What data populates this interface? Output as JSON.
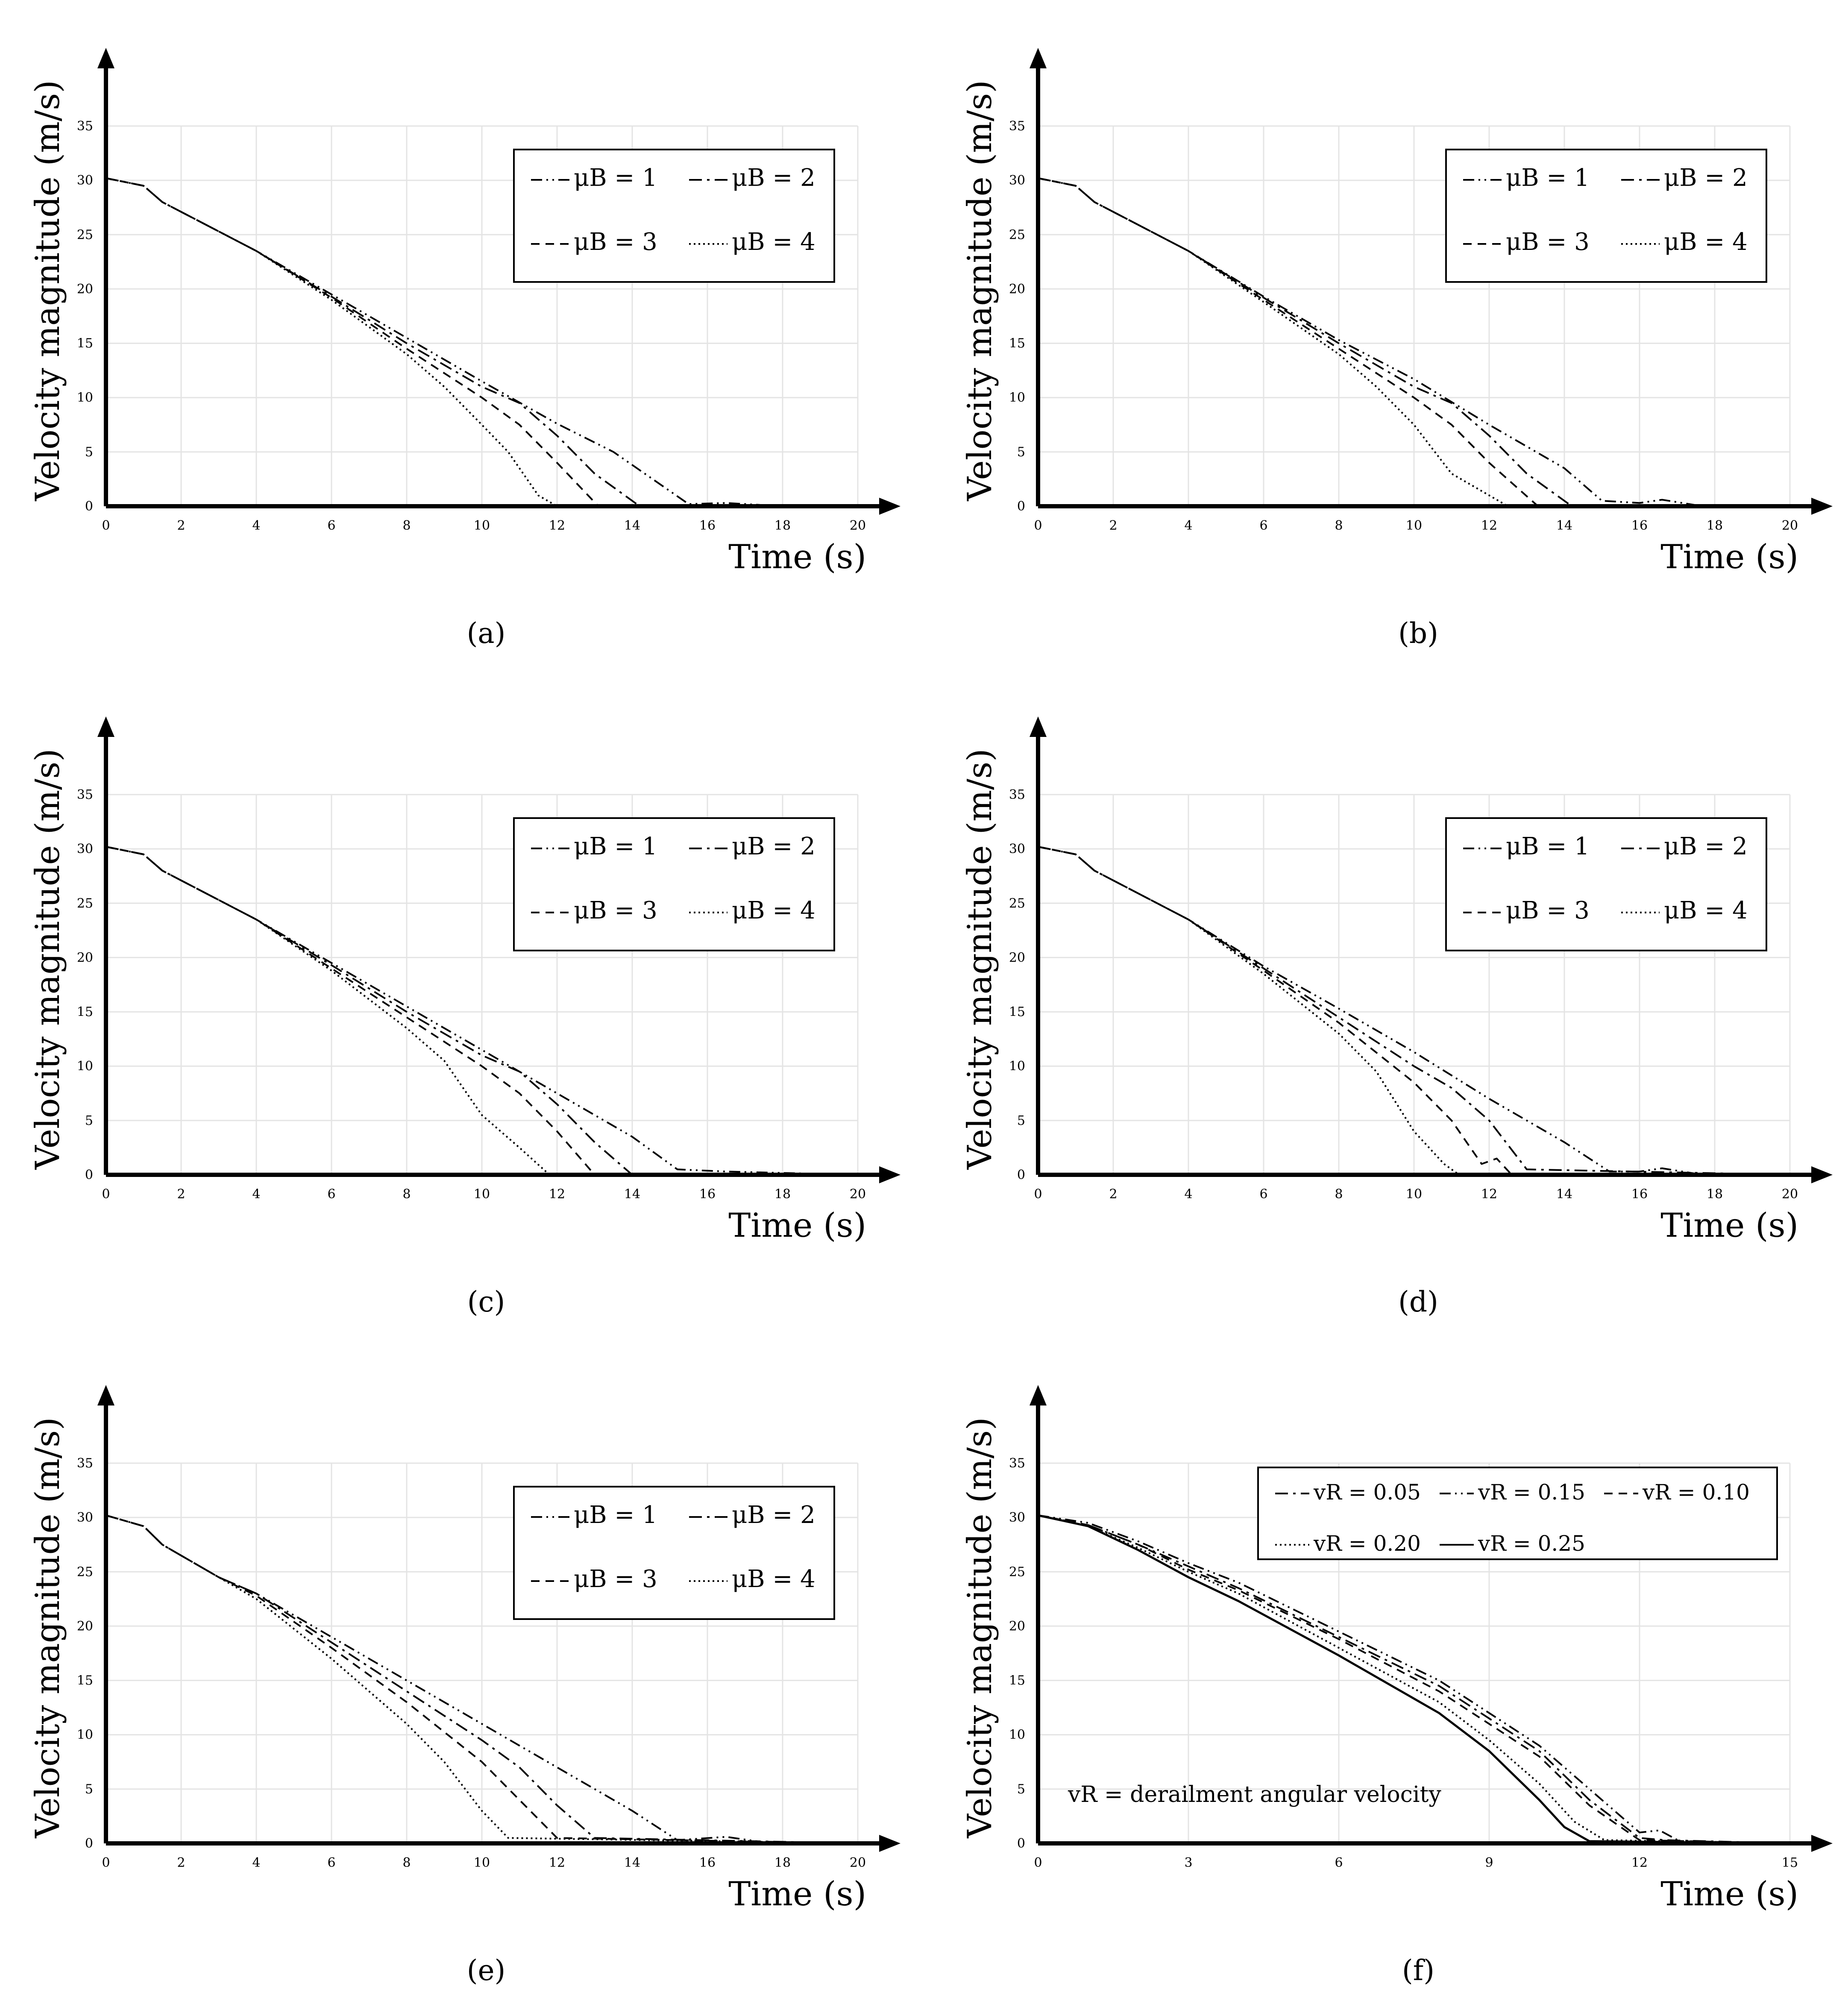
{
  "chart_data": [
    {
      "panel": "a",
      "type": "line",
      "xlabel": "Time (s)",
      "ylabel": "Velocity magnitude (m/s)",
      "xlim": [
        0,
        20
      ],
      "ylim": [
        0,
        35
      ],
      "xticks": [
        0,
        2,
        4,
        6,
        8,
        10,
        12,
        14,
        16,
        18,
        20
      ],
      "yticks": [
        0,
        5,
        10,
        15,
        20,
        25,
        30,
        35
      ],
      "grid": true,
      "legend_position": "top-right",
      "series": [
        {
          "name": "μB = 1",
          "style": "dash-dot-dot",
          "x": [
            0,
            1,
            1.5,
            4,
            6,
            8,
            10,
            12,
            13.5,
            15.5,
            16.5,
            17.5,
            20
          ],
          "y": [
            30.2,
            29.5,
            28,
            23.5,
            19.5,
            15.5,
            11.5,
            7.6,
            5,
            0.2,
            0.3,
            0.1,
            0
          ]
        },
        {
          "name": "μB = 2",
          "style": "dash-dot",
          "x": [
            0,
            1,
            1.5,
            4,
            6,
            8,
            10,
            11,
            12,
            13,
            14.2,
            20
          ],
          "y": [
            30.2,
            29.5,
            28,
            23.5,
            19.3,
            15,
            11,
            9.5,
            6.5,
            3,
            0,
            0
          ]
        },
        {
          "name": "μB = 3",
          "style": "dashed",
          "x": [
            0,
            1,
            1.5,
            4,
            6,
            8,
            10,
            11,
            12,
            13.1,
            20
          ],
          "y": [
            30.2,
            29.5,
            28,
            23.5,
            19.2,
            14.5,
            10,
            7.5,
            4,
            0,
            0
          ]
        },
        {
          "name": "μB = 4",
          "style": "dotted",
          "x": [
            0,
            1,
            1.5,
            4,
            6,
            8,
            9,
            10,
            10.7,
            11.5,
            12,
            20
          ],
          "y": [
            30.2,
            29.5,
            28,
            23.5,
            19,
            14,
            11,
            7.5,
            5,
            1,
            0,
            0
          ]
        }
      ]
    },
    {
      "panel": "b",
      "type": "line",
      "xlabel": "Time (s)",
      "ylabel": "Velocity magnitude (m/s)",
      "xlim": [
        0,
        20
      ],
      "ylim": [
        0,
        35
      ],
      "xticks": [
        0,
        2,
        4,
        6,
        8,
        10,
        12,
        14,
        16,
        18,
        20
      ],
      "yticks": [
        0,
        5,
        10,
        15,
        20,
        25,
        30,
        35
      ],
      "grid": true,
      "legend_position": "top-right",
      "series": [
        {
          "name": "μB = 1",
          "style": "dash-dot-dot",
          "x": [
            0,
            1,
            1.5,
            4,
            6,
            8,
            10,
            12,
            13,
            14,
            15,
            16,
            16.6,
            17.5,
            20
          ],
          "y": [
            30.2,
            29.5,
            28,
            23.5,
            19.3,
            15.3,
            11.7,
            7.5,
            5.5,
            3.5,
            0.5,
            0.3,
            0.6,
            0.1,
            0
          ]
        },
        {
          "name": "μB = 2",
          "style": "dash-dot",
          "x": [
            0,
            1,
            1.5,
            4,
            6,
            8,
            10,
            11,
            12,
            13,
            14.2,
            20
          ],
          "y": [
            30.2,
            29.5,
            28,
            23.5,
            19.2,
            15,
            11,
            9.5,
            6.5,
            3,
            0,
            0
          ]
        },
        {
          "name": "μB = 3",
          "style": "dashed",
          "x": [
            0,
            1,
            1.5,
            4,
            6,
            8,
            10,
            11,
            12,
            13.3,
            20
          ],
          "y": [
            30.2,
            29.5,
            28,
            23.5,
            19,
            14.5,
            10,
            7.5,
            4,
            0,
            0
          ]
        },
        {
          "name": "μB = 4",
          "style": "dotted",
          "x": [
            0,
            1,
            1.5,
            4,
            6,
            8,
            9,
            10,
            11,
            12,
            12.5,
            20
          ],
          "y": [
            30.2,
            29.5,
            28,
            23.5,
            18.8,
            14,
            11,
            7.5,
            3,
            1,
            0,
            0
          ]
        }
      ]
    },
    {
      "panel": "c",
      "type": "line",
      "xlabel": "Time (s)",
      "ylabel": "Velocity magnitude (m/s)",
      "xlim": [
        0,
        20
      ],
      "ylim": [
        0,
        35
      ],
      "xticks": [
        0,
        2,
        4,
        6,
        8,
        10,
        12,
        14,
        16,
        18,
        20
      ],
      "yticks": [
        0,
        5,
        10,
        15,
        20,
        25,
        30,
        35
      ],
      "grid": true,
      "legend_position": "top-right",
      "series": [
        {
          "name": "μB = 1",
          "style": "dash-dot-dot",
          "x": [
            0,
            1,
            1.5,
            4,
            6,
            8,
            10,
            12,
            14,
            15.2,
            16.5,
            20
          ],
          "y": [
            30.2,
            29.5,
            28,
            23.5,
            19.5,
            15.5,
            11.5,
            7.5,
            3.5,
            0.5,
            0.3,
            0
          ]
        },
        {
          "name": "μB = 2",
          "style": "dash-dot",
          "x": [
            0,
            1,
            1.5,
            4,
            6,
            8,
            10,
            11,
            12,
            13,
            14,
            20
          ],
          "y": [
            30.2,
            29.5,
            28,
            23.5,
            19.3,
            15,
            11,
            9.5,
            6.5,
            3,
            0,
            0
          ]
        },
        {
          "name": "μB = 3",
          "style": "dashed",
          "x": [
            0,
            1,
            1.5,
            4,
            6,
            8,
            10,
            11,
            12,
            13,
            20
          ],
          "y": [
            30.2,
            29.5,
            28,
            23.5,
            19,
            14.5,
            10,
            7.5,
            4,
            0,
            0
          ]
        },
        {
          "name": "μB = 4",
          "style": "dotted",
          "x": [
            0,
            1,
            1.5,
            4,
            6,
            8,
            9,
            10,
            11,
            11.8,
            20
          ],
          "y": [
            30.2,
            29.5,
            28,
            23.5,
            18.8,
            13.5,
            10.5,
            5.5,
            2.5,
            0,
            0
          ]
        }
      ]
    },
    {
      "panel": "d",
      "type": "line",
      "xlabel": "Time (s)",
      "ylabel": "Velocity magnitude (m/s)",
      "xlim": [
        0,
        20
      ],
      "ylim": [
        0,
        35
      ],
      "xticks": [
        0,
        2,
        4,
        6,
        8,
        10,
        12,
        14,
        16,
        18,
        20
      ],
      "yticks": [
        0,
        5,
        10,
        15,
        20,
        25,
        30,
        35
      ],
      "grid": true,
      "legend_position": "top-right",
      "series": [
        {
          "name": "μB = 1",
          "style": "dash-dot-dot",
          "x": [
            0,
            1,
            1.5,
            4,
            6,
            8,
            10,
            12,
            14,
            15.2,
            16,
            16.6,
            17.5,
            20
          ],
          "y": [
            30.2,
            29.5,
            28,
            23.5,
            19.2,
            15.3,
            11.3,
            7,
            3,
            0.3,
            0.3,
            0.6,
            0.1,
            0
          ]
        },
        {
          "name": "μB = 2",
          "style": "dash-dot",
          "x": [
            0,
            1,
            1.5,
            4,
            6,
            8,
            10,
            11,
            12,
            13,
            20
          ],
          "y": [
            30.2,
            29.5,
            28,
            23.5,
            19,
            14.5,
            10,
            8,
            5,
            0.5,
            0
          ]
        },
        {
          "name": "μB = 3",
          "style": "dashed",
          "x": [
            0,
            1,
            1.5,
            4,
            6,
            8,
            10,
            11,
            11.8,
            12.2,
            12.6,
            20
          ],
          "y": [
            30.2,
            29.5,
            28,
            23.5,
            18.8,
            14,
            8.5,
            5,
            1,
            1.5,
            0,
            0
          ]
        },
        {
          "name": "μB = 4",
          "style": "dotted",
          "x": [
            0,
            1,
            1.5,
            4,
            6,
            8,
            9,
            10,
            10.8,
            11.2,
            20
          ],
          "y": [
            30.2,
            29.5,
            28,
            23.5,
            18.5,
            13,
            9.5,
            4,
            1,
            0,
            0
          ]
        }
      ]
    },
    {
      "panel": "e",
      "type": "line",
      "xlabel": "Time (s)",
      "ylabel": "Velocity magnitude (m/s)",
      "xlim": [
        0,
        20
      ],
      "ylim": [
        0,
        35
      ],
      "xticks": [
        0,
        2,
        4,
        6,
        8,
        10,
        12,
        14,
        16,
        18,
        20
      ],
      "yticks": [
        0,
        5,
        10,
        15,
        20,
        25,
        30,
        35
      ],
      "grid": true,
      "legend_position": "top-right",
      "series": [
        {
          "name": "μB = 1",
          "style": "dash-dot-dot",
          "x": [
            0,
            1,
            1.5,
            3,
            4,
            6,
            8,
            10,
            12,
            14,
            15.2,
            16.5,
            17.5,
            20
          ],
          "y": [
            30.2,
            29.2,
            27.5,
            24.5,
            23,
            19,
            15,
            11,
            7,
            3,
            0.3,
            0.6,
            0.1,
            0
          ]
        },
        {
          "name": "μB = 2",
          "style": "dash-dot",
          "x": [
            0,
            1,
            1.5,
            3,
            4,
            6,
            8,
            10,
            11,
            12,
            13,
            20
          ],
          "y": [
            30.2,
            29.2,
            27.5,
            24.5,
            23,
            18.5,
            14,
            9.5,
            7,
            3.5,
            0.5,
            0
          ]
        },
        {
          "name": "μB = 3",
          "style": "dashed",
          "x": [
            0,
            1,
            1.5,
            3,
            4,
            6,
            8,
            10,
            11,
            12,
            20
          ],
          "y": [
            30.2,
            29.2,
            27.5,
            24.5,
            22.8,
            18,
            13,
            7.5,
            4,
            0.5,
            0
          ]
        },
        {
          "name": "μB = 4",
          "style": "dotted",
          "x": [
            0,
            1,
            1.5,
            3,
            4,
            6,
            8,
            9,
            10,
            10.7,
            20
          ],
          "y": [
            30.2,
            29.2,
            27.5,
            24.5,
            22.5,
            17,
            11,
            7.5,
            3,
            0.5,
            0
          ]
        }
      ]
    },
    {
      "panel": "f",
      "type": "line",
      "xlabel": "Time (s)",
      "ylabel": "Velocity magnitude (m/s)",
      "xlim": [
        0,
        15
      ],
      "ylim": [
        0,
        35
      ],
      "xticks": [
        0,
        3,
        6,
        9,
        12,
        15
      ],
      "yticks": [
        0,
        5,
        10,
        15,
        20,
        25,
        30,
        35
      ],
      "grid": true,
      "legend_position": "top-right",
      "annotation": "= derailment angular velocity",
      "annotation_symbol": "vR",
      "series": [
        {
          "name": "vR = 0.05",
          "style": "dash-dot",
          "x": [
            0,
            1,
            2,
            3,
            4,
            6,
            8,
            9,
            10,
            11,
            12,
            12.5,
            15
          ],
          "y": [
            30.2,
            29.3,
            27.5,
            25.5,
            23.5,
            19,
            14.5,
            11.5,
            8.5,
            4,
            0.5,
            0.3,
            0
          ]
        },
        {
          "name": "vR = 0.15",
          "style": "dash-dot-dot",
          "x": [
            0,
            1,
            2,
            3,
            4,
            6,
            8,
            9,
            10,
            11,
            12,
            12.4,
            12.8,
            15
          ],
          "y": [
            30.2,
            29.5,
            27.8,
            25.8,
            24,
            19.5,
            15,
            12,
            9,
            5,
            1,
            1.2,
            0.2,
            0
          ]
        },
        {
          "name": "vR = 0.10",
          "style": "dashed",
          "x": [
            0,
            1,
            2,
            3,
            4,
            6,
            8,
            9,
            10,
            11,
            12,
            15
          ],
          "y": [
            30.2,
            29.3,
            27.5,
            25.2,
            23.3,
            18.8,
            14,
            11,
            8,
            3.5,
            0.3,
            0
          ]
        },
        {
          "name": "vR = 0.20",
          "style": "dotted",
          "x": [
            0,
            1,
            2,
            3,
            4,
            6,
            8,
            9,
            10,
            10.7,
            11.3,
            15
          ],
          "y": [
            30.2,
            29.2,
            27.2,
            25,
            23,
            18,
            13,
            9.5,
            5.5,
            2,
            0.3,
            0
          ]
        },
        {
          "name": "vR = 0.25",
          "style": "solid",
          "x": [
            0,
            1,
            2,
            3,
            4,
            6,
            8,
            9,
            10,
            10.5,
            11,
            15
          ],
          "y": [
            30.2,
            29.2,
            27,
            24.5,
            22.3,
            17.3,
            12,
            8.5,
            4,
            1.5,
            0.2,
            0
          ]
        }
      ]
    }
  ],
  "panel_labels": [
    "(a)",
    "(b)",
    "(c)",
    "(d)",
    "(e)",
    "(f)"
  ]
}
